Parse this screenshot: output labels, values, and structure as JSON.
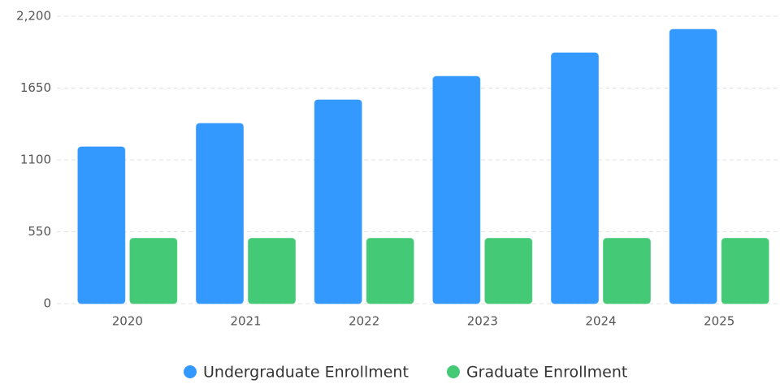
{
  "chart_data": {
    "type": "bar",
    "categories": [
      "2020",
      "2021",
      "2022",
      "2023",
      "2024",
      "2025"
    ],
    "series": [
      {
        "name": "Undergraduate Enrollment",
        "color": "#3399ff",
        "values": [
          1200,
          1380,
          1560,
          1740,
          1920,
          2100
        ]
      },
      {
        "name": "Graduate Enrollment",
        "color": "#44c977",
        "values": [
          500,
          500,
          500,
          500,
          500,
          500
        ]
      }
    ],
    "ylim": [
      0,
      2200
    ],
    "yticks": [
      0,
      550,
      1100,
      1650,
      {
        "value": 2200,
        "label": "2,200"
      }
    ],
    "grid": true,
    "legend": "bottom"
  }
}
